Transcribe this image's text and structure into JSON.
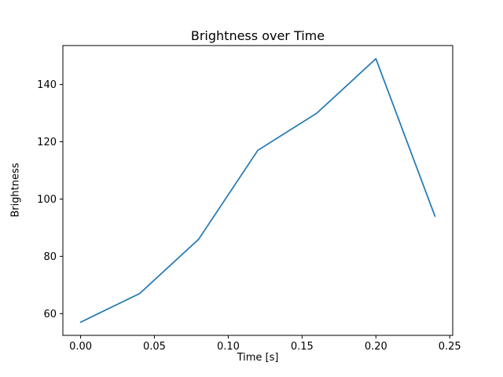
{
  "figure": {
    "background": "#ffffff",
    "text_color": "#000000"
  },
  "chart_data": {
    "type": "line",
    "title": "Brightness over Time",
    "xlabel": "Time [s]",
    "ylabel": "Brightness",
    "x": [
      0.0,
      0.04,
      0.08,
      0.12,
      0.16,
      0.2,
      0.24
    ],
    "y": [
      57,
      67,
      86,
      117,
      130,
      149,
      94
    ],
    "xlim": [
      -0.012,
      0.252
    ],
    "ylim": [
      52.4,
      153.6
    ],
    "xticks": [
      0.0,
      0.05,
      0.1,
      0.15,
      0.2,
      0.25
    ],
    "xtick_labels": [
      "0.00",
      "0.05",
      "0.10",
      "0.15",
      "0.20",
      "0.25"
    ],
    "yticks": [
      60,
      80,
      100,
      120,
      140
    ],
    "ytick_labels": [
      "60",
      "80",
      "100",
      "120",
      "140"
    ],
    "line_color": "#1f77b4",
    "spine_color": "#000000",
    "grid": false,
    "legend": null
  }
}
